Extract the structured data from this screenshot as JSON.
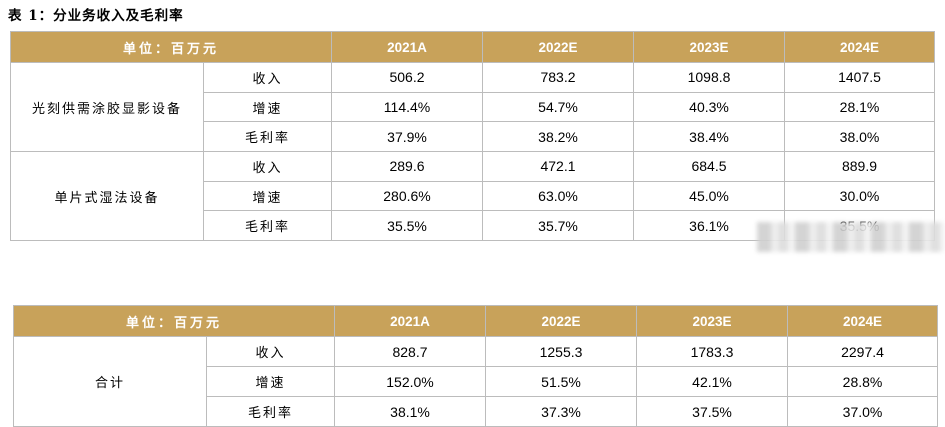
{
  "title": "表 1：分业务收入及毛利率",
  "header": {
    "unit_label": "单位：百万元",
    "years": [
      "2021A",
      "2022E",
      "2023E",
      "2024E"
    ]
  },
  "table1": {
    "segments": [
      {
        "name": "光刻供需涂胶显影设备",
        "rows": [
          {
            "metric": "收入",
            "values": [
              "506.2",
              "783.2",
              "1098.8",
              "1407.5"
            ]
          },
          {
            "metric": "增速",
            "values": [
              "114.4%",
              "54.7%",
              "40.3%",
              "28.1%"
            ]
          },
          {
            "metric": "毛利率",
            "values": [
              "37.9%",
              "38.2%",
              "38.4%",
              "38.0%"
            ]
          }
        ]
      },
      {
        "name": "单片式湿法设备",
        "rows": [
          {
            "metric": "收入",
            "values": [
              "289.6",
              "472.1",
              "684.5",
              "889.9"
            ]
          },
          {
            "metric": "增速",
            "values": [
              "280.6%",
              "63.0%",
              "45.0%",
              "30.0%"
            ]
          },
          {
            "metric": "毛利率",
            "values": [
              "35.5%",
              "35.7%",
              "36.1%",
              "35.5%"
            ]
          }
        ]
      }
    ]
  },
  "table2": {
    "segments": [
      {
        "name": "合计",
        "rows": [
          {
            "metric": "收入",
            "values": [
              "828.7",
              "1255.3",
              "1783.3",
              "2297.4"
            ]
          },
          {
            "metric": "增速",
            "values": [
              "152.0%",
              "51.5%",
              "42.1%",
              "28.8%"
            ]
          },
          {
            "metric": "毛利率",
            "values": [
              "38.1%",
              "37.3%",
              "37.5%",
              "37.0%"
            ]
          }
        ]
      }
    ]
  },
  "colors": {
    "header_bg": "#c8a25a",
    "header_text": "#ffffff",
    "border": "#bcbcbc"
  }
}
